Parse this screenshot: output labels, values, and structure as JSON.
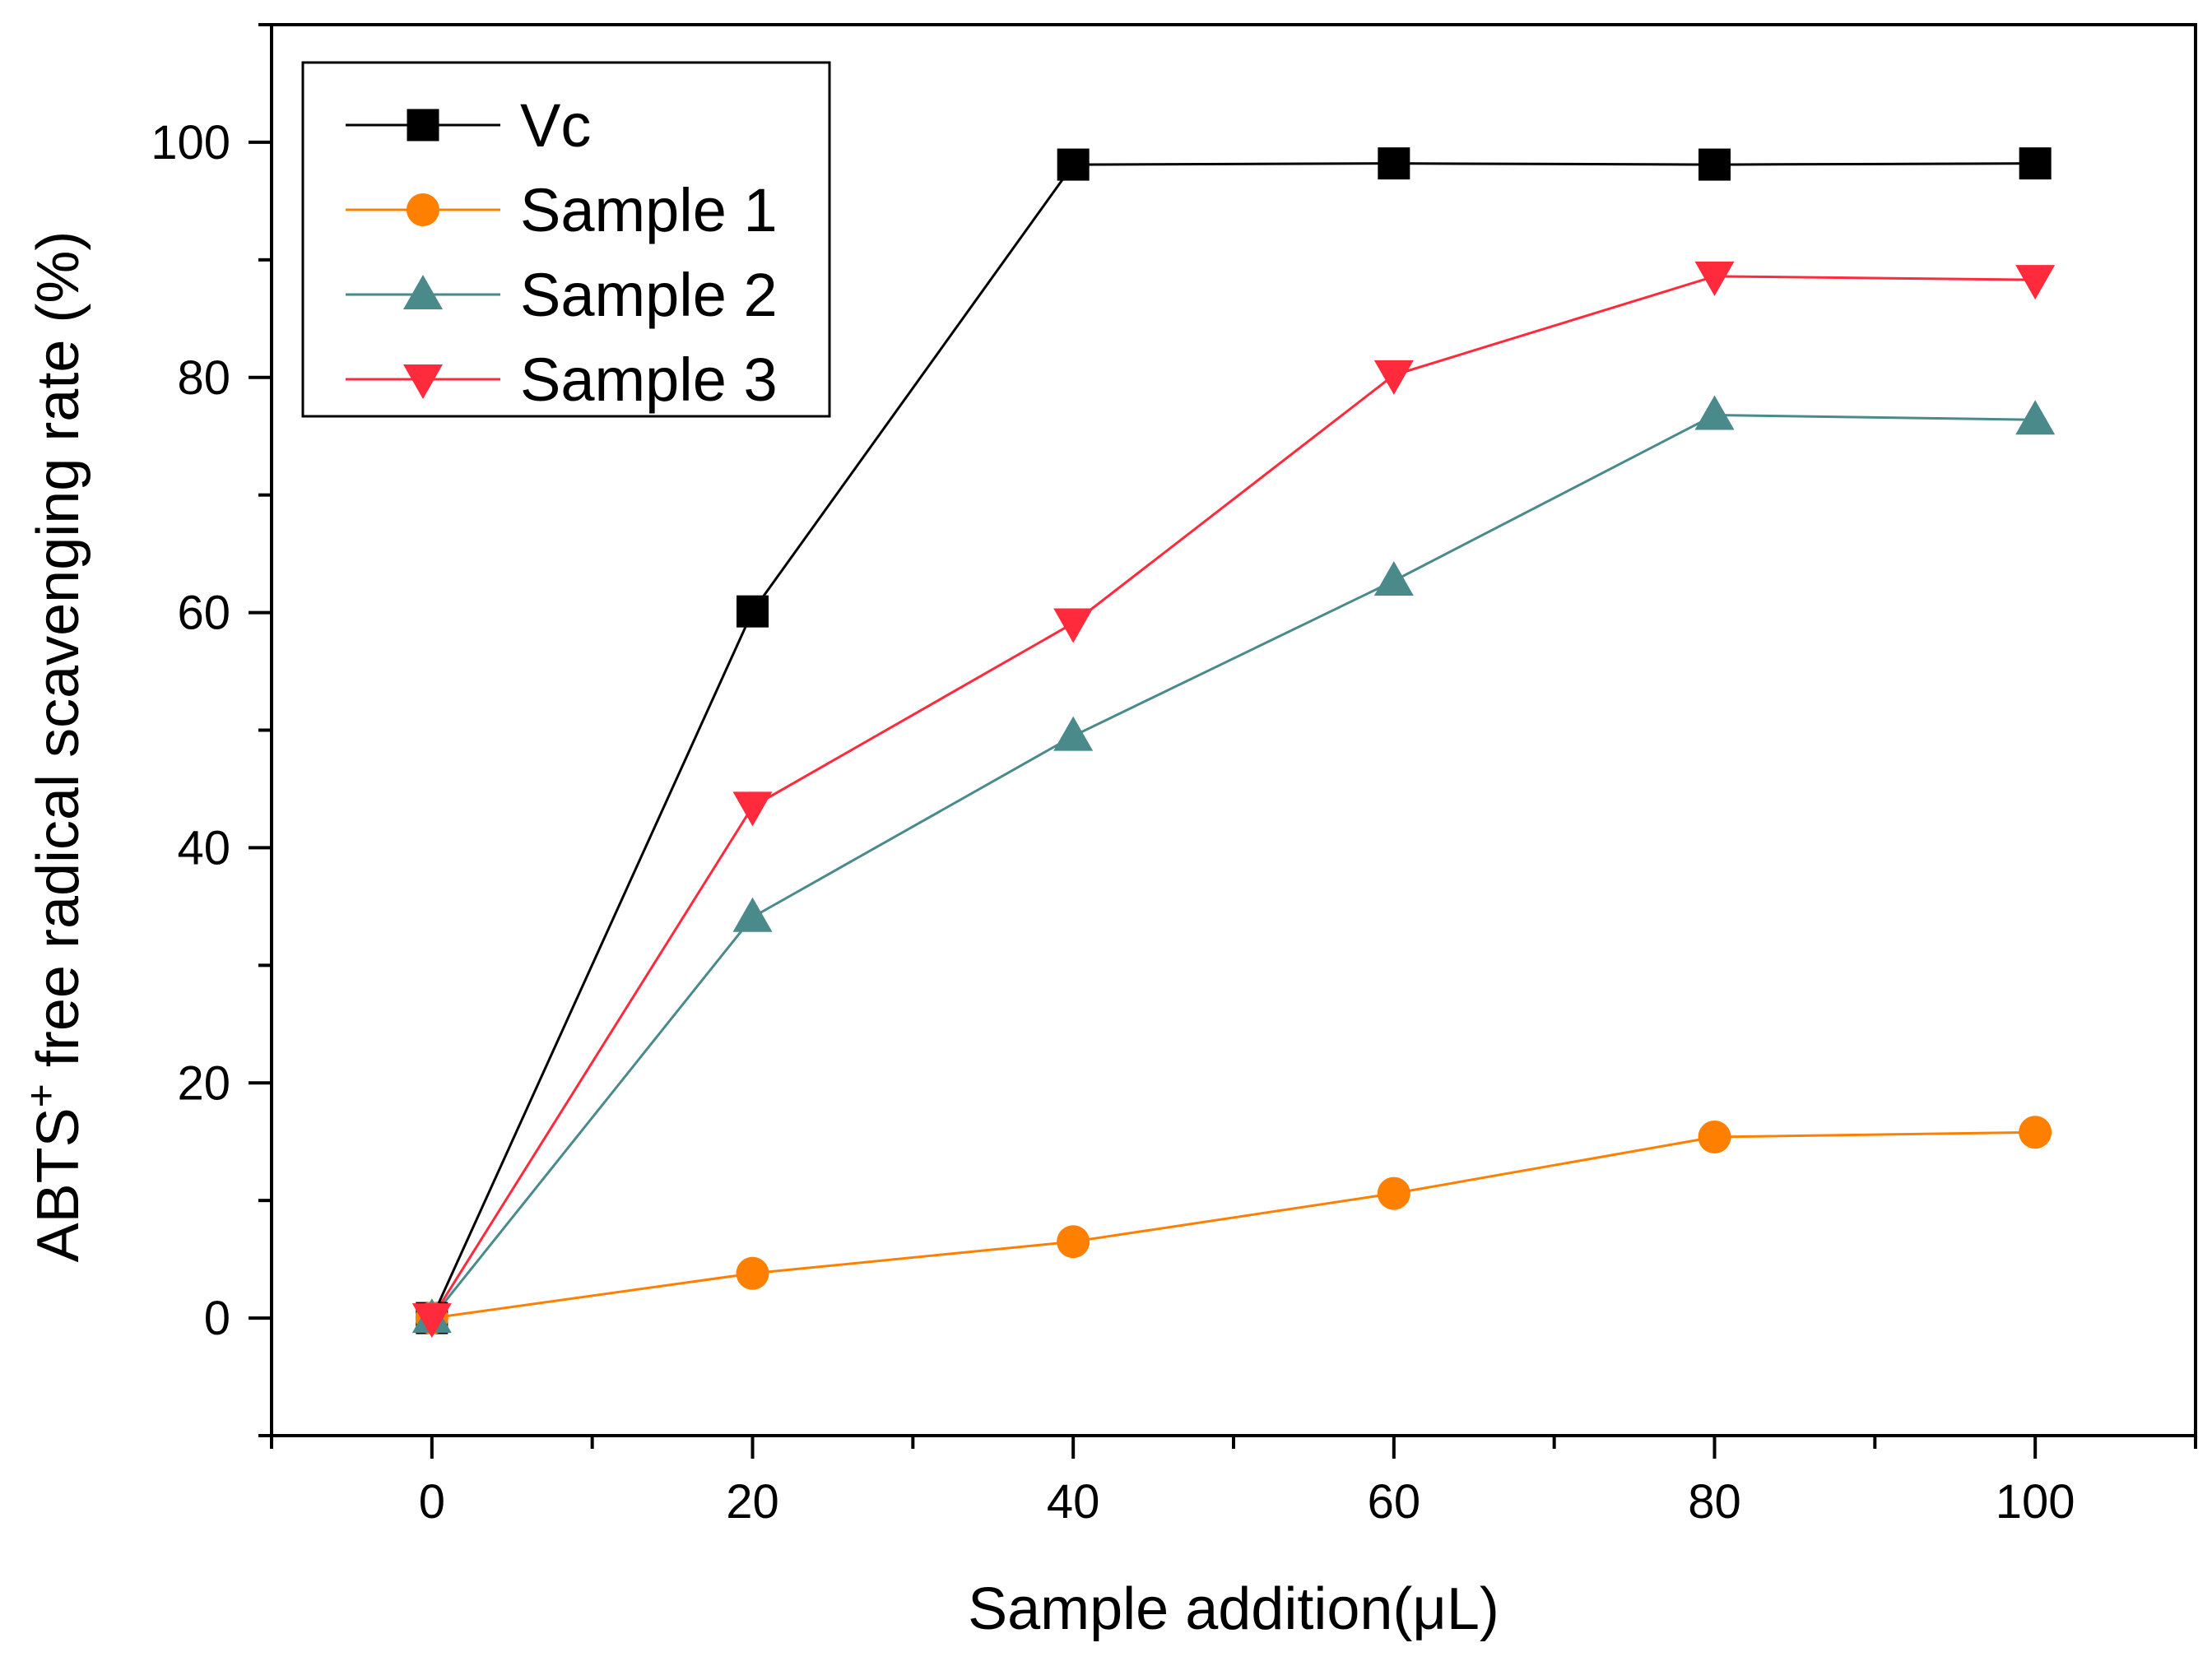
{
  "chart_data": {
    "type": "line",
    "title": "",
    "xlabel": "Sample addition(μL)",
    "ylabel_prefix": "ABTS",
    "ylabel_superscript": "+",
    "ylabel_suffix": " free radical scavenging rate (%)",
    "xlim": [
      -10,
      110
    ],
    "ylim": [
      -10,
      110
    ],
    "x_ticks": [
      0,
      20,
      40,
      60,
      80,
      100
    ],
    "y_ticks": [
      0,
      20,
      40,
      60,
      80,
      100
    ],
    "x_minor_step": 10,
    "y_minor_step": 10,
    "grid": false,
    "legend_position": "top-left",
    "x": [
      0,
      20,
      40,
      60,
      80,
      100
    ],
    "series": [
      {
        "name": "Vc",
        "marker": "square",
        "color": "#000000",
        "values": [
          0,
          60.1,
          98.1,
          98.2,
          98.1,
          98.2
        ]
      },
      {
        "name": "Sample 1",
        "marker": "circle",
        "color": "#ff8000",
        "values": [
          0,
          3.8,
          6.5,
          10.6,
          15.4,
          15.8
        ]
      },
      {
        "name": "Sample 2",
        "marker": "triangle-up",
        "color": "#4a8a8a",
        "values": [
          0,
          34.1,
          49.5,
          62.7,
          76.8,
          76.4
        ]
      },
      {
        "name": "Sample 3",
        "marker": "triangle-down",
        "color": "#ff2a3c",
        "values": [
          0,
          43.5,
          59.1,
          80.2,
          88.6,
          88.3
        ]
      }
    ]
  }
}
